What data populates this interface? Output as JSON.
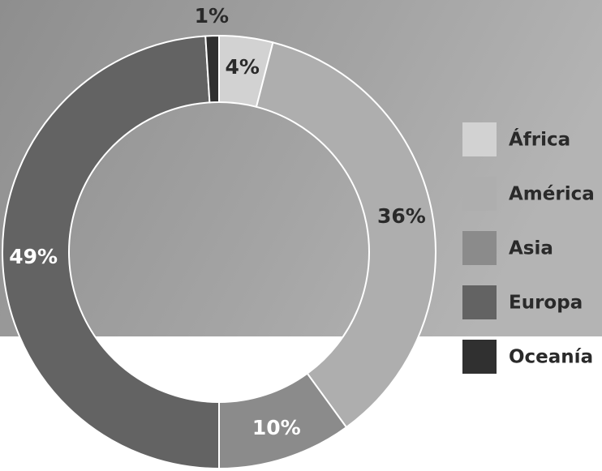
{
  "chart_data": {
    "type": "donut",
    "categories": [
      "África",
      "América",
      "Asia",
      "Europa",
      "Oceanía"
    ],
    "values": [
      4,
      36,
      10,
      49,
      1
    ],
    "value_labels": [
      "4%",
      "36%",
      "10%",
      "49%",
      "1%"
    ],
    "colors": [
      "#d2d2d2",
      "#aeaeae",
      "#8b8b8b",
      "#636363",
      "#303030"
    ],
    "legend": "right"
  }
}
